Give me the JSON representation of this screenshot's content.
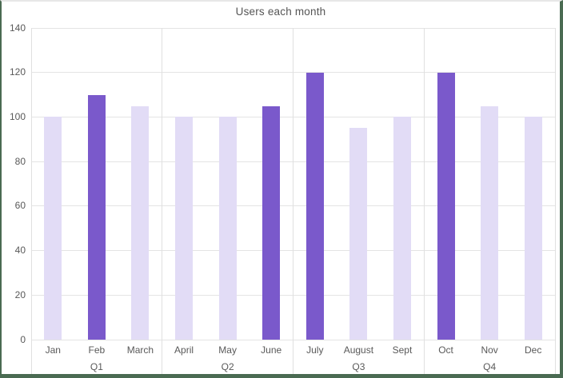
{
  "chart_data": {
    "type": "bar",
    "title": "Users each month",
    "categories": [
      "Jan",
      "Feb",
      "March",
      "April",
      "May",
      "June",
      "July",
      "August",
      "Sept",
      "Oct",
      "Nov",
      "Dec"
    ],
    "values": [
      100,
      110,
      105,
      100,
      100,
      105,
      120,
      95,
      100,
      120,
      105,
      100
    ],
    "highlighted": [
      false,
      true,
      false,
      false,
      false,
      true,
      true,
      false,
      false,
      true,
      false,
      false
    ],
    "group_labels": [
      "Q1",
      "Q2",
      "Q3",
      "Q4"
    ],
    "months_per_group": 3,
    "xlabel": "",
    "ylabel": "",
    "ylim": [
      0,
      140
    ],
    "ytick_labels": [
      "0",
      "20",
      "40",
      "60",
      "80",
      "100",
      "120",
      "140"
    ],
    "grid": "horizontal",
    "legend": "none",
    "colors": {
      "bar_highlight": "#7a59cb",
      "bar_normal": "#e2dcf6",
      "gridline": "#e4e4e4",
      "axis_line": "#e0e0e0",
      "axis_text": "#595959",
      "title_text": "#555555",
      "frame_border": "#4a6b52"
    }
  }
}
